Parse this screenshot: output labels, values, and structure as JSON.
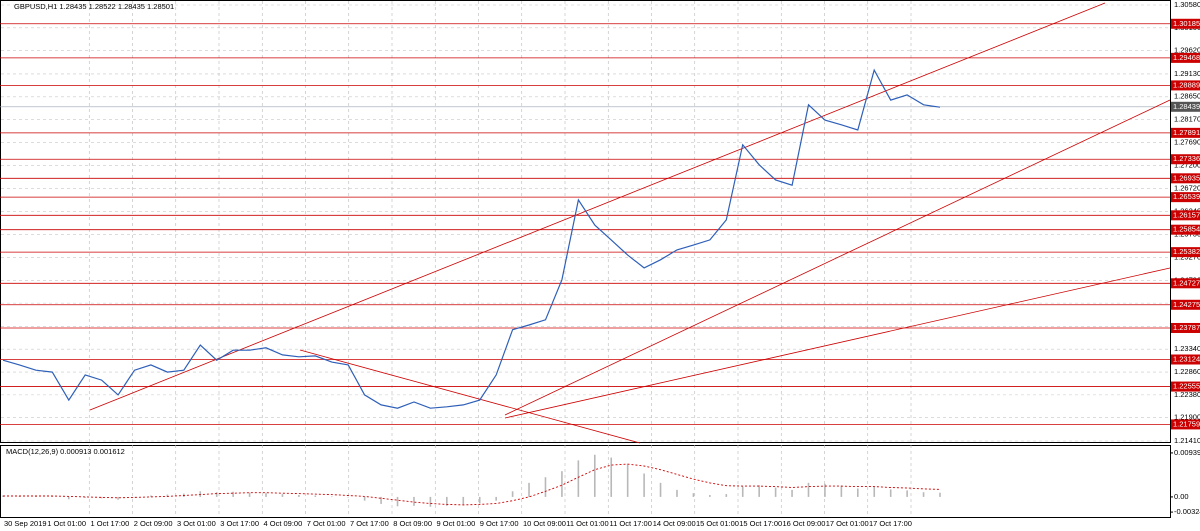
{
  "chart_data": [
    {
      "type": "line",
      "title": "GBPUSD,H1  1.28435 1.28522 1.28435 1.28501",
      "color": "#2e5fb8",
      "values": [
        1.2311,
        1.2301,
        1.229,
        1.2286,
        1.2227,
        1.228,
        1.2269,
        1.2238,
        1.229,
        1.2301,
        1.2286,
        1.229,
        1.2343,
        1.2311,
        1.2332,
        1.2332,
        1.2337,
        1.2322,
        1.2318,
        1.232,
        1.2307,
        1.2301,
        1.2238,
        1.2217,
        1.221,
        1.2223,
        1.221,
        1.2213,
        1.2217,
        1.2227,
        1.228,
        1.2375,
        1.2385,
        1.2396,
        1.248,
        1.2648,
        1.2595,
        1.2564,
        1.2532,
        1.2505,
        1.2522,
        1.2543,
        1.2553,
        1.2564,
        1.2606,
        1.2764,
        1.2722,
        1.269,
        1.2679,
        1.2848,
        1.2816,
        1.2806,
        1.2795,
        1.2921,
        1.2858,
        1.2869,
        1.2848,
        1.2843
      ],
      "ylim": [
        1.2141,
        1.3058
      ],
      "yticks": [
        {
          "value": 1.3058,
          "label": "1.30580"
        },
        {
          "value": 1.301,
          "label": "1.30100"
        },
        {
          "value": 1.2962,
          "label": "1.29620"
        },
        {
          "value": 1.2913,
          "label": "1.29130"
        },
        {
          "value": 1.2865,
          "label": "1.28650"
        },
        {
          "value": 1.2817,
          "label": "1.28170"
        },
        {
          "value": 1.2769,
          "label": "1.27690"
        },
        {
          "value": 1.272,
          "label": "1.27200"
        },
        {
          "value": 1.2672,
          "label": "1.26720"
        },
        {
          "value": 1.2624,
          "label": "1.26240"
        },
        {
          "value": 1.2575,
          "label": "1.25750"
        },
        {
          "value": 1.2527,
          "label": "1.25270"
        },
        {
          "value": 1.2479,
          "label": "1.24790"
        },
        {
          "value": 1.2431,
          "label": "1.24310"
        },
        {
          "value": 1.2382,
          "label": "1.23820"
        },
        {
          "value": 1.2334,
          "label": "1.23340"
        },
        {
          "value": 1.2286,
          "label": "1.22860"
        },
        {
          "value": 1.2238,
          "label": "1.22380"
        },
        {
          "value": 1.219,
          "label": "1.21900"
        },
        {
          "value": 1.2141,
          "label": "1.21410"
        }
      ],
      "levels": [
        1.30185,
        1.29468,
        1.28889,
        1.27891,
        1.27336,
        1.26935,
        1.26539,
        1.26157,
        1.25854,
        1.25382,
        1.24727,
        1.24275,
        1.23787,
        1.23124,
        1.22555,
        1.21759
      ],
      "level_color": "#cc0000",
      "current_price": 1.28439,
      "grid": true,
      "time_labels": [
        "30 Sep 2019",
        "1 Oct 01:00",
        "1 Oct 17:00",
        "2 Oct 09:00",
        "3 Oct 01:00",
        "3 Oct 17:00",
        "4 Oct 09:00",
        "7 Oct 01:00",
        "7 Oct 17:00",
        "8 Oct 09:00",
        "9 Oct 01:00",
        "9 Oct 17:00",
        "10 Oct 09:00",
        "11 Oct 01:00",
        "11 Oct 17:00",
        "14 Oct 09:00",
        "15 Oct 01:00",
        "15 Oct 17:00",
        "16 Oct 09:00",
        "17 Oct 01:00",
        "17 Oct 17:00"
      ]
    },
    {
      "type": "bar",
      "title": "MACD(12,26,9) 0.000913 0.001612",
      "color": "#b8b8b8",
      "signal_color": "#d00000",
      "values": [
        0.0003,
        0.0002,
        0.0001,
        0.0002,
        -0.0005,
        -0.0002,
        -0.0003,
        -0.0006,
        0.0,
        0.0003,
        0.0005,
        0.0007,
        0.0012,
        0.001,
        0.0011,
        0.0009,
        0.0008,
        0.0006,
        0.0004,
        0.0003,
        0.0001,
        -0.0001,
        -0.0008,
        -0.0015,
        -0.002,
        -0.0019,
        -0.0021,
        -0.0019,
        -0.0017,
        -0.0014,
        -0.0008,
        0.0012,
        0.003,
        0.0042,
        0.0055,
        0.0078,
        0.009,
        0.0084,
        0.007,
        0.005,
        0.003,
        0.0015,
        0.0008,
        0.0004,
        0.0006,
        0.0022,
        0.0025,
        0.002,
        0.0015,
        0.003,
        0.0028,
        0.0024,
        0.0018,
        0.0022,
        0.0016,
        0.0014,
        0.001,
        0.0009
      ],
      "signal": [
        0.0002,
        0.0002,
        0.0002,
        0.0002,
        0.0001,
        0.0,
        -0.0001,
        -0.0002,
        -0.0001,
        0.0,
        0.0001,
        0.0003,
        0.0005,
        0.0007,
        0.0008,
        0.0009,
        0.0009,
        0.0008,
        0.0007,
        0.0006,
        0.0005,
        0.0003,
        0.0001,
        -0.0003,
        -0.0007,
        -0.0011,
        -0.0014,
        -0.0016,
        -0.0017,
        -0.0016,
        -0.0014,
        -0.0008,
        0.0,
        0.0012,
        0.0025,
        0.0042,
        0.0058,
        0.0068,
        0.007,
        0.0066,
        0.0058,
        0.0048,
        0.0038,
        0.003,
        0.0024,
        0.0023,
        0.0023,
        0.0022,
        0.002,
        0.0022,
        0.0023,
        0.0023,
        0.0022,
        0.0022,
        0.002,
        0.0019,
        0.0017,
        0.0016
      ],
      "ylim": [
        -0.00429,
        0.01087
      ],
      "yticks": [
        0.009392,
        {
          "value": 0,
          "label": "0.00"
        },
        -0.00324
      ]
    }
  ]
}
